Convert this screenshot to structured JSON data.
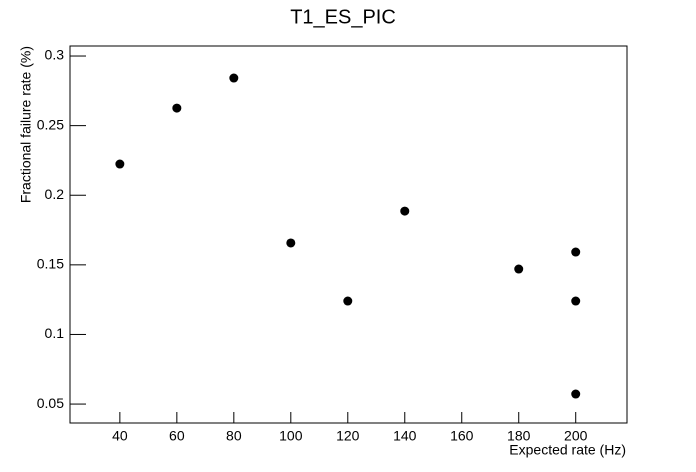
{
  "chart_data": {
    "type": "scatter",
    "title": "T1_ES_PIC",
    "x_label": "Expected rate (Hz)",
    "y_label": "Fractional failure rate (%)",
    "x": [
      40,
      60,
      80,
      100,
      120,
      140,
      180,
      200,
      200,
      200
    ],
    "values": [
      0.2224,
      0.2626,
      0.2842,
      0.1657,
      0.124,
      0.1886,
      0.147,
      0.1592,
      0.124,
      0.0572
    ],
    "color": "#000000",
    "xlim": [
      22.5,
      218
    ],
    "xticks": [
      40,
      60,
      80,
      100,
      120,
      140,
      160,
      180,
      200
    ],
    "ylim": [
      0.0364,
      0.3072
    ],
    "yticks": [
      0.05,
      0.1,
      0.15,
      0.2,
      0.25,
      0.3
    ]
  }
}
